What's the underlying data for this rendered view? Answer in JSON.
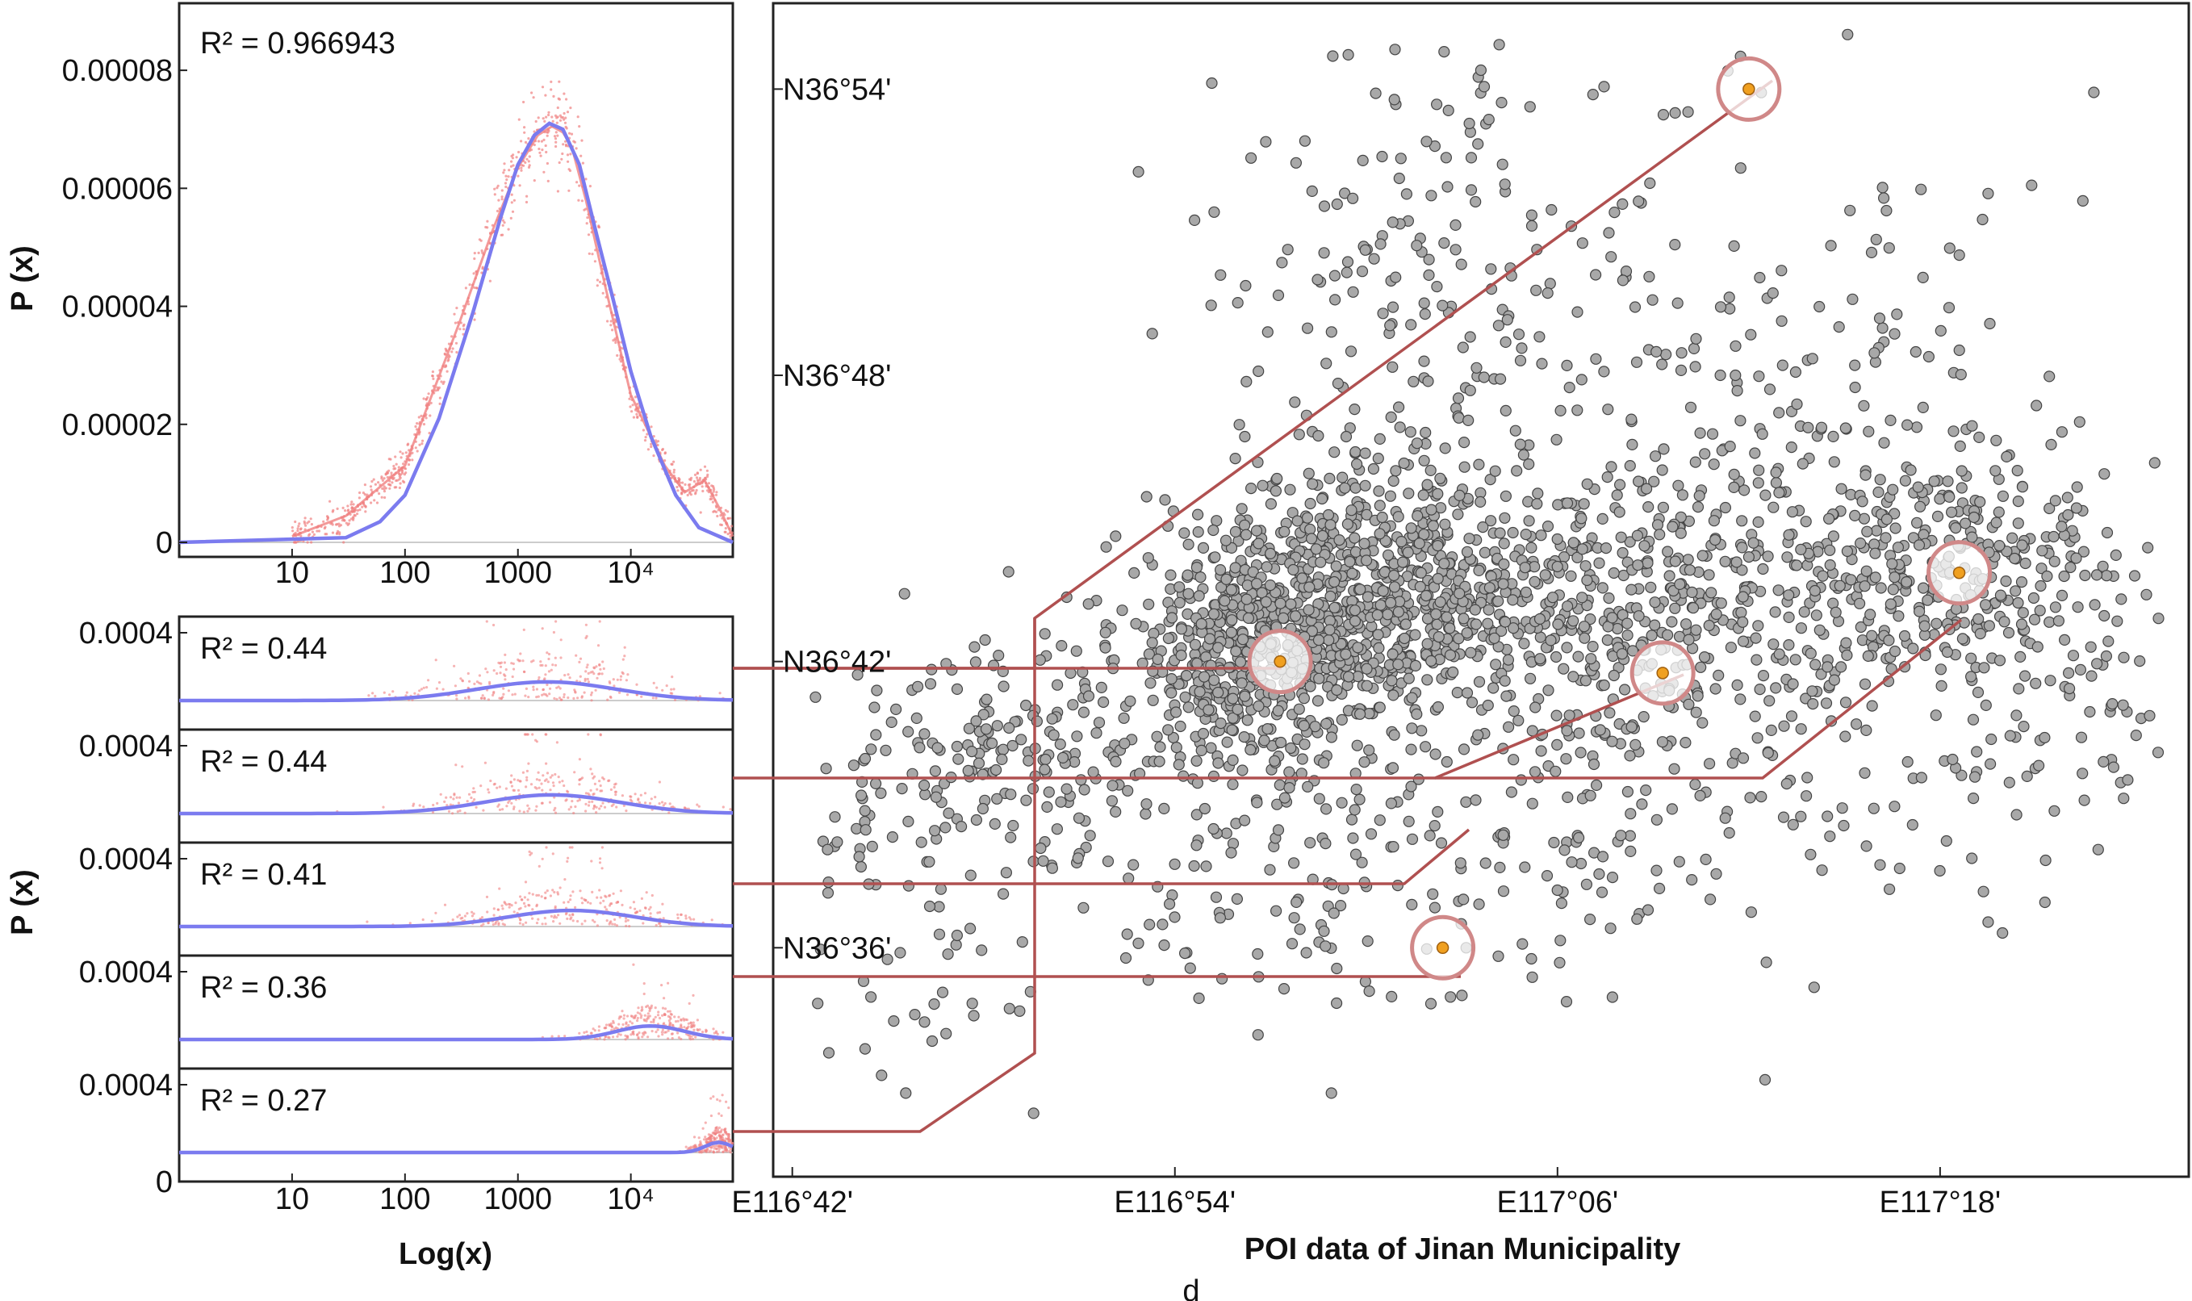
{
  "chart_data": [
    {
      "type": "scatter",
      "id": "top-distribution",
      "annotation": "R² = 0.966943",
      "r_squared": 0.966943,
      "ylabel": "P (x)",
      "xscale": "log",
      "xlim": [
        1,
        80000
      ],
      "ylim": [
        0,
        9e-05
      ],
      "yticks": [
        "0",
        "0.00002",
        "0.00004",
        "0.00006",
        "0.00008"
      ],
      "ytick_values": [
        0,
        2e-05,
        4e-05,
        6e-05,
        8e-05
      ],
      "xticks": [
        "10",
        "100",
        "1000",
        "10⁴"
      ],
      "xtick_values": [
        10,
        100,
        1000,
        10000
      ],
      "series": [
        {
          "color": "#f08080",
          "style": "scatter",
          "x": [
            10,
            30,
            100,
            300,
            600,
            1000,
            1500,
            2000,
            2500,
            3000,
            4000,
            6000,
            10000,
            20000,
            30000,
            45000,
            60000,
            80000
          ],
          "y": [
            1e-06,
            4.5e-06,
            1.3e-05,
            3.7e-05,
            5.3e-05,
            6.35e-05,
            6.9e-05,
            7.05e-05,
            6.95e-05,
            6.7e-05,
            5.8e-05,
            4.3e-05,
            2.5e-05,
            1.3e-05,
            8.5e-06,
            1.05e-05,
            6e-06,
            1e-06
          ]
        },
        {
          "color": "#7b7bef",
          "style": "line",
          "x": [
            1,
            30,
            60,
            100,
            200,
            400,
            700,
            1000,
            1400,
            1900,
            2500,
            3500,
            5000,
            7000,
            10000,
            15000,
            25000,
            40000,
            80000
          ],
          "y": [
            0,
            8e-07,
            3.5e-06,
            8e-06,
            2.1e-05,
            3.9e-05,
            5.5e-05,
            6.4e-05,
            6.9e-05,
            7.1e-05,
            7e-05,
            6.4e-05,
            5.2e-05,
            4.1e-05,
            2.9e-05,
            1.8e-05,
            8e-06,
            2.5e-06,
            0
          ]
        }
      ]
    },
    {
      "type": "scatter",
      "id": "stacked-distributions",
      "ylabel": "P (x)",
      "xlabel": "Log(x)",
      "xscale": "log",
      "xlim": [
        1,
        80000
      ],
      "xticks": [
        "10",
        "100",
        "1000",
        "10⁴"
      ],
      "xtick_values": [
        10,
        100,
        1000,
        10000
      ],
      "panels": [
        {
          "annotation": "R² = 0.44",
          "r_squared": 0.44,
          "ylim": [
            0,
            0.0006
          ],
          "ytick": "0.0004",
          "ytick_value": 0.0004,
          "peak_x": 1800,
          "peak_y": 0.00011,
          "spread": 0.62
        },
        {
          "annotation": "R² = 0.44",
          "r_squared": 0.44,
          "ylim": [
            0,
            0.0006
          ],
          "ytick": "0.0004",
          "ytick_value": 0.0004,
          "peak_x": 2000,
          "peak_y": 0.00011,
          "spread": 0.6
        },
        {
          "annotation": "R² = 0.41",
          "r_squared": 0.41,
          "ylim": [
            0,
            0.0006
          ],
          "ytick": "0.0004",
          "ytick_value": 0.0004,
          "peak_x": 3000,
          "peak_y": 9.5e-05,
          "spread": 0.55
        },
        {
          "annotation": "R² = 0.36",
          "r_squared": 0.36,
          "ylim": [
            0,
            0.0006
          ],
          "ytick": "0.0004",
          "ytick_value": 0.0004,
          "peak_x": 15000,
          "peak_y": 8e-05,
          "spread": 0.3
        },
        {
          "annotation": "R² = 0.27",
          "r_squared": 0.27,
          "ylim": [
            0,
            0.0006
          ],
          "ytick": "0.0004",
          "ytick_value": 0.0004,
          "bottom_tick": "0",
          "peak_x": 60000,
          "peak_y": 6e-05,
          "spread": 0.12
        }
      ]
    },
    {
      "type": "scatter",
      "id": "poi-map",
      "xlabel": "POI data of Jinan Municipality",
      "xticks": [
        "E116°42'",
        "E116°54'",
        "E117°06'",
        "E117°18'"
      ],
      "xtick_values_deg": [
        116.7,
        116.9,
        117.1,
        117.3
      ],
      "yticks": [
        "N36°36'",
        "N36°42'",
        "N36°48'",
        "N36°54'"
      ],
      "ytick_values_deg": [
        36.6,
        36.7,
        36.8,
        36.9
      ],
      "xlim": [
        116.69,
        117.43
      ],
      "ylim": [
        36.52,
        36.93
      ],
      "point_color": "#a8a8a8",
      "highlight_color": "#f0a020",
      "connector_color": "#b05050",
      "highlighted_sites": [
        {
          "lon": 117.2,
          "lat": 36.9
        },
        {
          "lon": 116.955,
          "lat": 36.7
        },
        {
          "lon": 117.155,
          "lat": 36.696
        },
        {
          "lon": 117.31,
          "lat": 36.731
        },
        {
          "lon": 117.04,
          "lat": 36.6
        }
      ]
    }
  ],
  "footer": {
    "label": "d"
  }
}
